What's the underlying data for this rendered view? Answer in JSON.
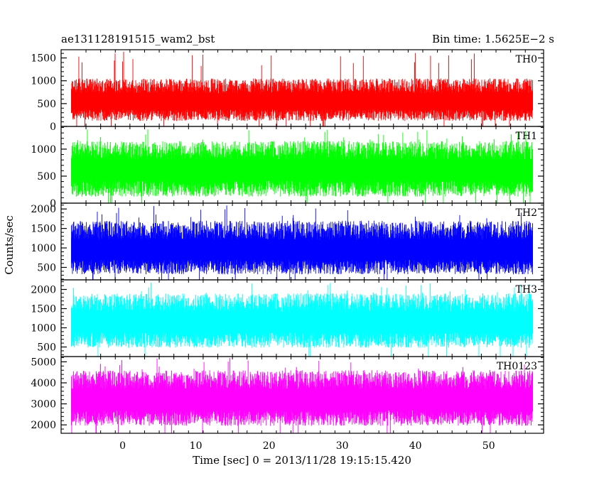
{
  "chart_data": {
    "type": "line",
    "title_left": "ae131128191515_wam2_bst",
    "title_right": "Bin time: 1.5625E−2 s",
    "xlabel": "Time [sec] 0 = 2013/11/28 19:15:15.420",
    "ylabel": "Counts/sec",
    "xlim": [
      -8.4,
      57.5
    ],
    "x_ticks": [
      0,
      10,
      20,
      30,
      40,
      50
    ],
    "x_data_range": [
      -7.0,
      56.0
    ],
    "bin_time": 0.015625,
    "panels": [
      {
        "name": "TH0",
        "color": "#ff0000",
        "ylim": [
          0,
          1680
        ],
        "y_ticks": [
          0,
          500,
          1000,
          1500
        ],
        "low": 120,
        "high": 1050,
        "mean": 550,
        "peak": 1650
      },
      {
        "name": "TH1",
        "color": "#00ff00",
        "ylim": [
          0,
          1420
        ],
        "y_ticks": [
          0,
          500,
          1000
        ],
        "low": 120,
        "high": 1150,
        "mean": 620,
        "peak": 1380
      },
      {
        "name": "TH2",
        "color": "#0000ff",
        "ylim": [
          180,
          2150
        ],
        "y_ticks": [
          500,
          1000,
          1500,
          2000
        ],
        "low": 320,
        "high": 1700,
        "mean": 950,
        "peak": 2100
      },
      {
        "name": "TH3",
        "color": "#00ffff",
        "ylim": [
          250,
          2250
        ],
        "y_ticks": [
          500,
          1000,
          1500,
          2000
        ],
        "low": 480,
        "high": 1900,
        "mean": 1150,
        "peak": 2200
      },
      {
        "name": "TH0123",
        "color": "#ff00ff",
        "ylim": [
          1600,
          5250
        ],
        "y_ticks": [
          2000,
          3000,
          4000,
          5000
        ],
        "low": 1950,
        "high": 4600,
        "mean": 3200,
        "peak": 5200
      }
    ]
  }
}
